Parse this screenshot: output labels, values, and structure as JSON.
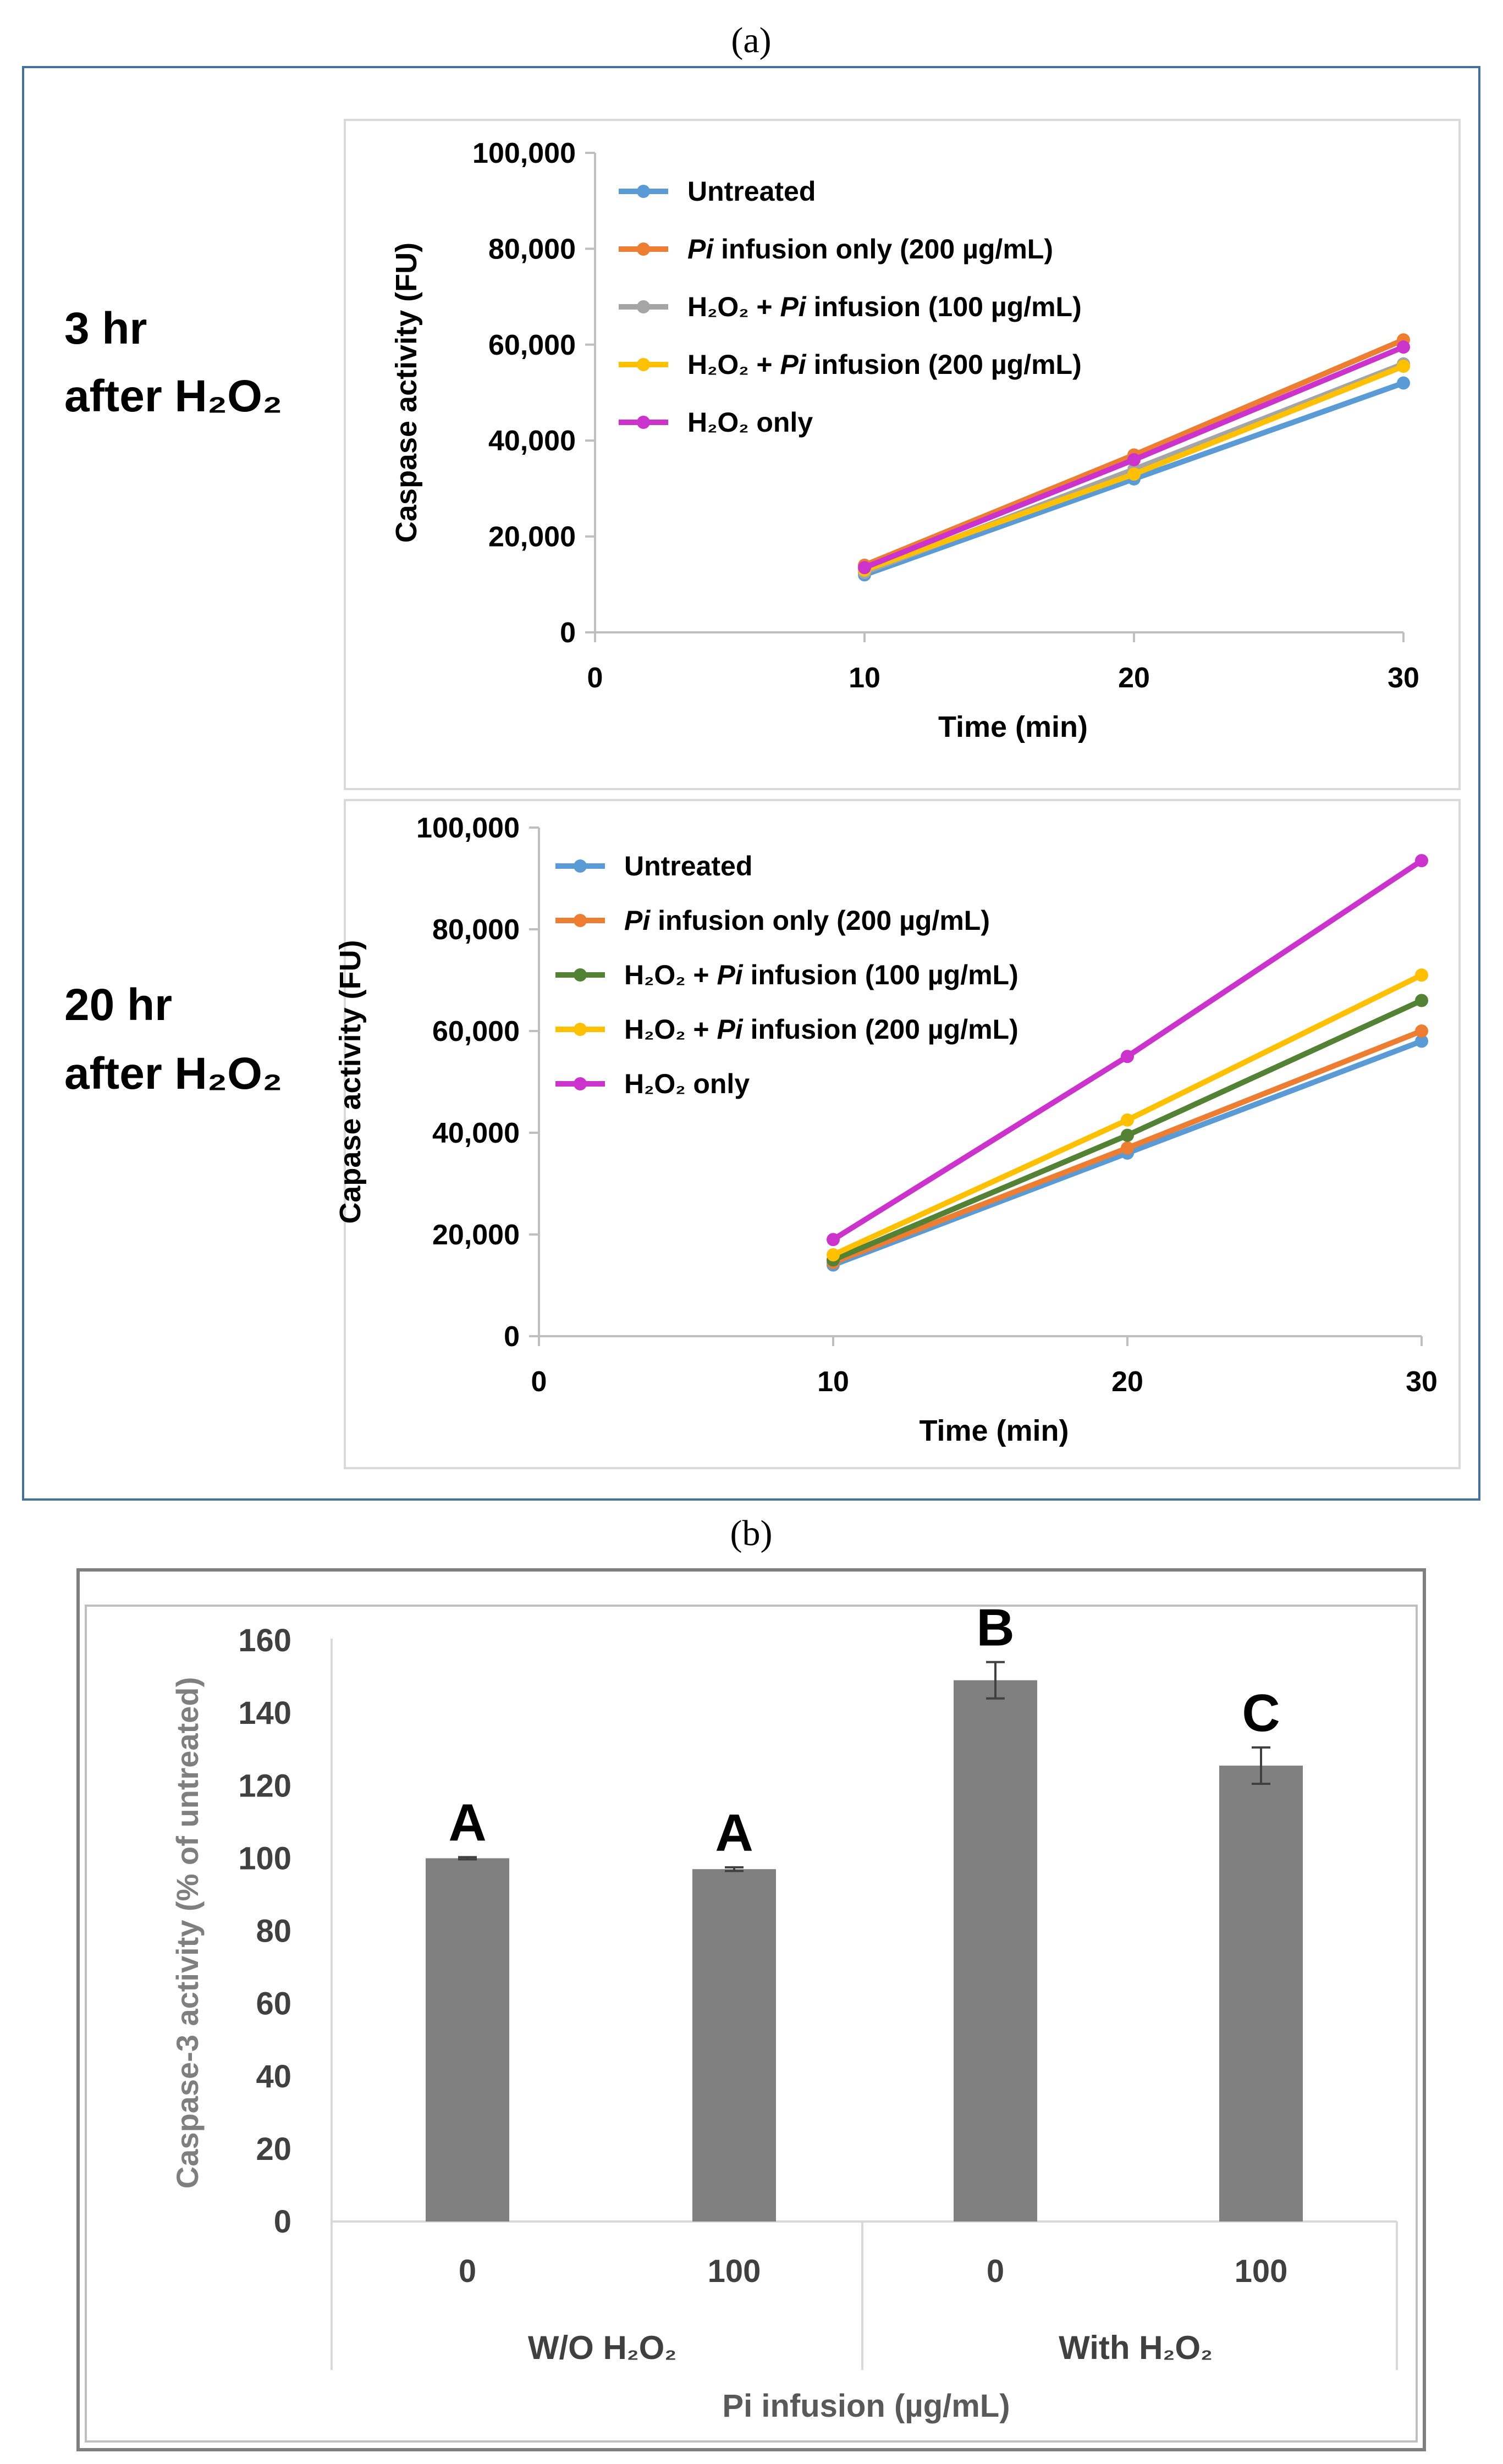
{
  "panel_a_label": "(a)",
  "panel_b_label": "(b)",
  "side_labels": {
    "top": [
      "3 hr",
      "after H₂O₂"
    ],
    "bottom": [
      "20 hr",
      "after H₂O₂"
    ]
  },
  "chart_data": [
    {
      "type": "line",
      "title": "",
      "xlabel": "Time (min)",
      "ylabel": "Caspase activity (FU)",
      "xlim": [
        0,
        30
      ],
      "ylim": [
        0,
        100000
      ],
      "x_ticks": [
        "0",
        "10",
        "20",
        "30"
      ],
      "y_ticks": [
        "0",
        "20,000",
        "40,000",
        "60,000",
        "80,000",
        "100,000"
      ],
      "x": [
        10,
        20,
        30
      ],
      "legend_position": "top-left",
      "series": [
        {
          "name": "Untreated",
          "color": "#5B9BD5",
          "values": [
            12000,
            32000,
            52000
          ]
        },
        {
          "name": "Pi infusion only (200 µg/mL)",
          "color": "#ED7D31",
          "values": [
            14000,
            37000,
            61000
          ]
        },
        {
          "name": "H₂O₂ + Pi infusion (100 µg/mL)",
          "color": "#A5A5A5",
          "values": [
            12500,
            34000,
            56000
          ]
        },
        {
          "name": "H₂O₂ + Pi infusion (200 µg/mL)",
          "color": "#FFC000",
          "values": [
            13000,
            33000,
            55500
          ]
        },
        {
          "name": "H₂O₂ only",
          "color": "#CC33CC",
          "values": [
            13500,
            36000,
            59500
          ]
        }
      ]
    },
    {
      "type": "line",
      "title": "",
      "xlabel": "Time (min)",
      "ylabel": "Capase activity (FU)",
      "xlim": [
        0,
        30
      ],
      "ylim": [
        0,
        100000
      ],
      "x_ticks": [
        "0",
        "10",
        "20",
        "30"
      ],
      "y_ticks": [
        "0",
        "20,000",
        "40,000",
        "60,000",
        "80,000",
        "100,000"
      ],
      "x": [
        10,
        20,
        30
      ],
      "legend_position": "top-left",
      "series": [
        {
          "name": "Untreated",
          "color": "#5B9BD5",
          "values": [
            14000,
            36000,
            58000
          ]
        },
        {
          "name": "Pi infusion only (200 µg/mL)",
          "color": "#ED7D31",
          "values": [
            14500,
            37000,
            60000
          ]
        },
        {
          "name": "H₂O₂ + Pi infusion (100 µg/mL)",
          "color": "#548235",
          "values": [
            15000,
            39500,
            66000
          ]
        },
        {
          "name": "H₂O₂ + Pi infusion (200 µg/mL)",
          "color": "#FFC000",
          "values": [
            16000,
            42500,
            71000
          ]
        },
        {
          "name": "H₂O₂ only",
          "color": "#CC33CC",
          "values": [
            19000,
            55000,
            93500
          ]
        }
      ]
    },
    {
      "type": "bar",
      "title": "",
      "xlabel": "Pi infusion (µg/mL)",
      "ylabel": "Caspase-3 activity (% of untreated)",
      "ylim": [
        0,
        160
      ],
      "y_ticks": [
        "0",
        "20",
        "40",
        "60",
        "80",
        "100",
        "120",
        "140",
        "160"
      ],
      "categories": [
        "0",
        "100",
        "0",
        "100"
      ],
      "groups": [
        "W/O H₂O₂",
        "With H₂O₂"
      ],
      "values": [
        100,
        97,
        149,
        125.5
      ],
      "errors": [
        0.3,
        0.5,
        5,
        5
      ],
      "significance_letters": [
        "A",
        "A",
        "B",
        "C"
      ],
      "bar_color": "#808080"
    }
  ]
}
